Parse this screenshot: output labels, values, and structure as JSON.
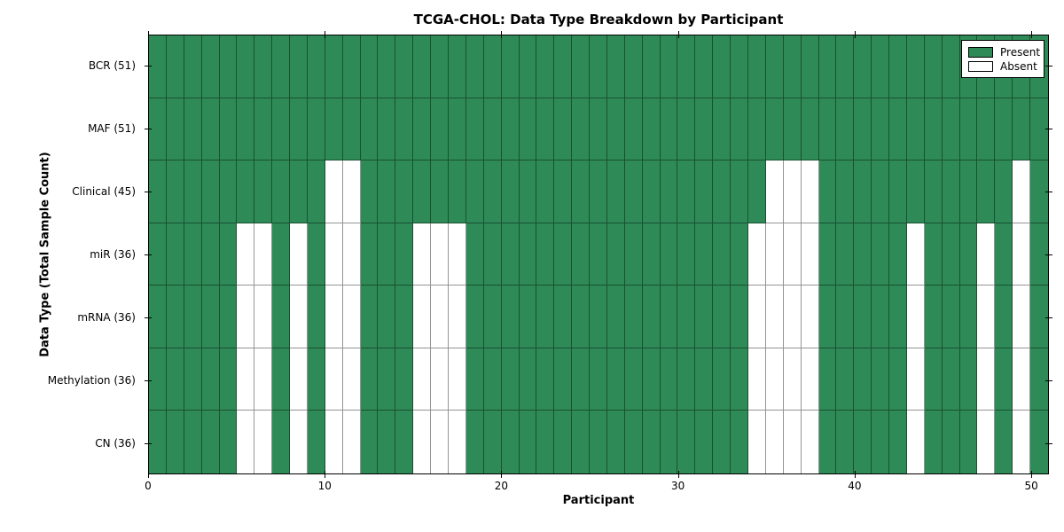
{
  "chart_data": {
    "type": "heatmap",
    "title": "TCGA-CHOL: Data Type Breakdown by Participant",
    "xlabel": "Participant",
    "ylabel": "Data Type (Total Sample Count)",
    "x_axis": {
      "n_columns": 51,
      "tick_values": [
        0,
        10,
        20,
        30,
        40,
        50
      ],
      "tick_labels": [
        "0",
        "10",
        "20",
        "30",
        "40",
        "50"
      ]
    },
    "rows": [
      {
        "label": "BCR (51)",
        "data_type": "BCR",
        "total_samples": 51,
        "absent_participants": []
      },
      {
        "label": "MAF (51)",
        "data_type": "MAF",
        "total_samples": 51,
        "absent_participants": []
      },
      {
        "label": "Clinical (45)",
        "data_type": "Clinical",
        "total_samples": 45,
        "absent_participants": [
          10,
          11,
          35,
          36,
          37,
          49
        ]
      },
      {
        "label": "miR (36)",
        "data_type": "miR",
        "total_samples": 36,
        "absent_participants": [
          5,
          6,
          8,
          10,
          11,
          15,
          16,
          17,
          34,
          35,
          36,
          37,
          43,
          47,
          49
        ]
      },
      {
        "label": "mRNA (36)",
        "data_type": "mRNA",
        "total_samples": 36,
        "absent_participants": [
          5,
          6,
          8,
          10,
          11,
          15,
          16,
          17,
          34,
          35,
          36,
          37,
          43,
          47,
          49
        ]
      },
      {
        "label": "Methylation (36)",
        "data_type": "Methylation",
        "total_samples": 36,
        "absent_participants": [
          5,
          6,
          8,
          10,
          11,
          15,
          16,
          17,
          34,
          35,
          36,
          37,
          43,
          47,
          49
        ]
      },
      {
        "label": "CN (36)",
        "data_type": "CN",
        "total_samples": 36,
        "absent_participants": [
          5,
          6,
          8,
          10,
          11,
          15,
          16,
          17,
          34,
          35,
          36,
          37,
          43,
          47,
          49
        ]
      }
    ],
    "legend": {
      "position": "upper right",
      "items": [
        {
          "label": "Present",
          "color": "#2E8B57"
        },
        {
          "label": "Absent",
          "color": "#FFFFFF"
        }
      ]
    },
    "colors": {
      "present": "#2E8B57",
      "absent": "#FFFFFF",
      "cell_edge": "rgba(0,0,0,0.42)",
      "frame": "#000000"
    }
  }
}
